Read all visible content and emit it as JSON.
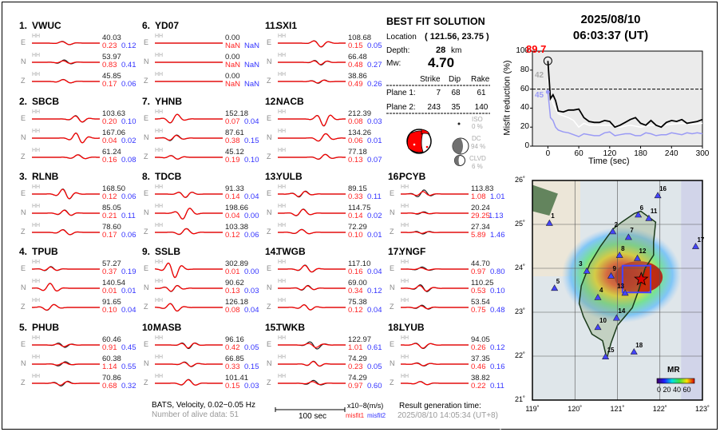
{
  "event": {
    "date": "2025/08/10",
    "time": "06:03:37  (UT)"
  },
  "best_fit": {
    "title": "BEST FIT SOLUTION",
    "location_label": "Location",
    "location": "( 121.56,  23.75 )",
    "depth_label": "Depth:",
    "depth": "28",
    "depth_unit": "km",
    "mw_label": "Mw:",
    "mw": "4.70",
    "headers": [
      "Strike",
      "Dip",
      "Rake"
    ],
    "planes": [
      {
        "label": "Plane 1:",
        "strike": "7",
        "dip": "68",
        "rake": "61"
      },
      {
        "label": "Plane 2:",
        "strike": "243",
        "dip": "35",
        "rake": "140"
      }
    ],
    "iso_label": "ISO",
    "iso": "0  %",
    "dc_label": "DC",
    "dc": "94 %",
    "clvd_label": "CLVD",
    "clvd": "6  %",
    "colors": {
      "compression": "#ff0000",
      "dc": "#707070"
    }
  },
  "stations": [
    {
      "num": "1.",
      "name": "VWUC",
      "comps": [
        {
          "c": "E",
          "ch": "HH",
          "v": "40.03",
          "m1": "0.23",
          "m2": "0.12"
        },
        {
          "c": "N",
          "ch": "HH",
          "v": "53.97",
          "m1": "0.83",
          "m2": "0.41"
        },
        {
          "c": "Z",
          "ch": "HH",
          "v": "45.85",
          "m1": "0.17",
          "m2": "0.06"
        }
      ]
    },
    {
      "num": "2.",
      "name": "SBCB",
      "comps": [
        {
          "c": "E",
          "ch": "HH",
          "v": "103.63",
          "m1": "0.20",
          "m2": "0.10"
        },
        {
          "c": "N",
          "ch": "HH",
          "v": "167.06",
          "m1": "0.04",
          "m2": "0.02"
        },
        {
          "c": "Z",
          "ch": "HH",
          "v": "61.24",
          "m1": "0.16",
          "m2": "0.08"
        }
      ]
    },
    {
      "num": "3.",
      "name": "RLNB",
      "comps": [
        {
          "c": "E",
          "ch": "HH",
          "v": "168.50",
          "m1": "0.12",
          "m2": "0.06"
        },
        {
          "c": "N",
          "ch": "HH",
          "v": "85.05",
          "m1": "0.21",
          "m2": "0.11"
        },
        {
          "c": "Z",
          "ch": "HH",
          "v": "78.60",
          "m1": "0.17",
          "m2": "0.06"
        }
      ]
    },
    {
      "num": "4.",
      "name": "TPUB",
      "comps": [
        {
          "c": "E",
          "ch": "HH",
          "v": "57.27",
          "m1": "0.37",
          "m2": "0.19"
        },
        {
          "c": "N",
          "ch": "HH",
          "v": "140.54",
          "m1": "0.01",
          "m2": "0.01"
        },
        {
          "c": "Z",
          "ch": "HH",
          "v": "91.65",
          "m1": "0.10",
          "m2": "0.04"
        }
      ]
    },
    {
      "num": "5.",
      "name": "PHUB",
      "comps": [
        {
          "c": "E",
          "ch": "HH",
          "v": "60.46",
          "m1": "0.91",
          "m2": "0.45"
        },
        {
          "c": "N",
          "ch": "HH",
          "v": "60.38",
          "m1": "1.14",
          "m2": "0.55"
        },
        {
          "c": "Z",
          "ch": "HH",
          "v": "70.86",
          "m1": "0.68",
          "m2": "0.32"
        }
      ]
    },
    {
      "num": "6.",
      "name": "YD07",
      "comps": [
        {
          "c": "E",
          "ch": "HH",
          "v": "0.00",
          "m1": "NaN",
          "m2": "NaN"
        },
        {
          "c": "N",
          "ch": "HH",
          "v": "0.00",
          "m1": "NaN",
          "m2": "NaN"
        },
        {
          "c": "Z",
          "ch": "HH",
          "v": "0.00",
          "m1": "NaN",
          "m2": "NaN"
        }
      ]
    },
    {
      "num": "7.",
      "name": "YHNB",
      "comps": [
        {
          "c": "E",
          "ch": "HH",
          "v": "152.18",
          "m1": "0.07",
          "m2": "0.04"
        },
        {
          "c": "N",
          "ch": "HH",
          "v": "87.61",
          "m1": "0.38",
          "m2": "0.15"
        },
        {
          "c": "Z",
          "ch": "HH",
          "v": "45.12",
          "m1": "0.19",
          "m2": "0.10"
        }
      ]
    },
    {
      "num": "8.",
      "name": "TDCB",
      "comps": [
        {
          "c": "E",
          "ch": "HH",
          "v": "91.33",
          "m1": "0.14",
          "m2": "0.04"
        },
        {
          "c": "N",
          "ch": "HH",
          "v": "198.66",
          "m1": "0.04",
          "m2": "0.00"
        },
        {
          "c": "Z",
          "ch": "HH",
          "v": "103.38",
          "m1": "0.12",
          "m2": "0.06"
        }
      ]
    },
    {
      "num": "9.",
      "name": "SSLB",
      "comps": [
        {
          "c": "E",
          "ch": "HH",
          "v": "302.89",
          "m1": "0.01",
          "m2": "0.00"
        },
        {
          "c": "N",
          "ch": "HH",
          "v": "90.62",
          "m1": "0.13",
          "m2": "0.03"
        },
        {
          "c": "Z",
          "ch": "HH",
          "v": "126.18",
          "m1": "0.08",
          "m2": "0.04"
        }
      ]
    },
    {
      "num": "10.",
      "name": "MASB",
      "comps": [
        {
          "c": "E",
          "ch": "HH",
          "v": "96.16",
          "m1": "0.42",
          "m2": "0.05"
        },
        {
          "c": "N",
          "ch": "HH",
          "v": "66.85",
          "m1": "0.33",
          "m2": "0.15"
        },
        {
          "c": "Z",
          "ch": "HH",
          "v": "101.41",
          "m1": "0.15",
          "m2": "0.03"
        }
      ]
    },
    {
      "num": "11.",
      "name": "SXI1",
      "comps": [
        {
          "c": "E",
          "ch": "HH",
          "v": "108.68",
          "m1": "0.15",
          "m2": "0.05"
        },
        {
          "c": "N",
          "ch": "HH",
          "v": "66.48",
          "m1": "0.48",
          "m2": "0.27"
        },
        {
          "c": "Z",
          "ch": "HH",
          "v": "38.86",
          "m1": "0.49",
          "m2": "0.26"
        }
      ]
    },
    {
      "num": "12.",
      "name": "NACB",
      "comps": [
        {
          "c": "E",
          "ch": "HH",
          "v": "212.39",
          "m1": "0.08",
          "m2": "0.03"
        },
        {
          "c": "N",
          "ch": "HH",
          "v": "134.26",
          "m1": "0.06",
          "m2": "0.01"
        },
        {
          "c": "Z",
          "ch": "HH",
          "v": "77.18",
          "m1": "0.13",
          "m2": "0.07"
        }
      ]
    },
    {
      "num": "13.",
      "name": "YULB",
      "comps": [
        {
          "c": "E",
          "ch": "HH",
          "v": "89.15",
          "m1": "0.33",
          "m2": "0.11"
        },
        {
          "c": "N",
          "ch": "HH",
          "v": "114.75",
          "m1": "0.14",
          "m2": "0.02"
        },
        {
          "c": "Z",
          "ch": "HH",
          "v": "72.29",
          "m1": "0.10",
          "m2": "0.01"
        }
      ]
    },
    {
      "num": "14.",
      "name": "TWGB",
      "comps": [
        {
          "c": "E",
          "ch": "HH",
          "v": "117.10",
          "m1": "0.16",
          "m2": "0.04"
        },
        {
          "c": "N",
          "ch": "HH",
          "v": "69.00",
          "m1": "0.34",
          "m2": "0.12"
        },
        {
          "c": "Z",
          "ch": "HH",
          "v": "75.38",
          "m1": "0.12",
          "m2": "0.04"
        }
      ]
    },
    {
      "num": "15.",
      "name": "TWKB",
      "comps": [
        {
          "c": "E",
          "ch": "HH",
          "v": "122.97",
          "m1": "1.01",
          "m2": "0.61"
        },
        {
          "c": "N",
          "ch": "HH",
          "v": "74.29",
          "m1": "0.23",
          "m2": "0.05"
        },
        {
          "c": "Z",
          "ch": "HH",
          "v": "74.29",
          "m1": "0.97",
          "m2": "0.60"
        }
      ]
    },
    {
      "num": "16.",
      "name": "PCYB",
      "comps": [
        {
          "c": "E",
          "ch": "HH",
          "v": "113.83",
          "m1": "1.08",
          "m2": "1.01"
        },
        {
          "c": "N",
          "ch": "HH",
          "v": "20.24",
          "m1": "29.25",
          "m2": "1.13"
        },
        {
          "c": "Z",
          "ch": "HH",
          "v": "27.34",
          "m1": "5.89",
          "m2": "1.46"
        }
      ]
    },
    {
      "num": "17.",
      "name": "YNGF",
      "comps": [
        {
          "c": "E",
          "ch": "HH",
          "v": "44.70",
          "m1": "0.97",
          "m2": "0.80"
        },
        {
          "c": "N",
          "ch": "HH",
          "v": "110.25",
          "m1": "0.53",
          "m2": "0.10"
        },
        {
          "c": "Z",
          "ch": "HH",
          "v": "53.54",
          "m1": "0.75",
          "m2": "0.48"
        }
      ]
    },
    {
      "num": "18.",
      "name": "LYUB",
      "comps": [
        {
          "c": "E",
          "ch": "HH",
          "v": "94.05",
          "m1": "0.26",
          "m2": "0.12"
        },
        {
          "c": "N",
          "ch": "HH",
          "v": "37.35",
          "m1": "0.46",
          "m2": "0.16"
        },
        {
          "c": "Z",
          "ch": "HH",
          "v": "38.82",
          "m1": "0.22",
          "m2": "0.11"
        }
      ]
    }
  ],
  "footer": {
    "network": "BATS, Velocity, 0.02−0.05 Hz",
    "alive": "Number of alive data: 51",
    "scale_label": "100 sec",
    "unit": "x10−8(m/s)",
    "misfit1": "misfit1",
    "misfit2": "misfit2",
    "gen_label": "Result generation time:",
    "gen_time": "2025/08/10 14:05:34 (UT+8)"
  },
  "chart_data": {
    "type": "line",
    "xlabel": "Time (sec)",
    "ylabel": "Misfit reduction (%)",
    "xlim": [
      -30,
      300
    ],
    "ylim": [
      0,
      100
    ],
    "xticks": [
      0,
      60,
      120,
      180,
      240,
      300
    ],
    "yticks": [
      0,
      20,
      40,
      60,
      80,
      100
    ],
    "threshold": 60,
    "peak_label": "89.7",
    "label_white": "42",
    "label_blue": "45",
    "grid": false,
    "series": [
      {
        "color": "#000000",
        "x": [
          0,
          5,
          10,
          15,
          20,
          30,
          40,
          50,
          60,
          70,
          80,
          90,
          100,
          110,
          120,
          130,
          140,
          150,
          160,
          170,
          180,
          190,
          200,
          210,
          220,
          230,
          240,
          250,
          260,
          270,
          280,
          290,
          300
        ],
        "y": [
          89.7,
          50,
          54,
          48,
          37,
          36,
          38,
          38,
          39,
          30,
          26,
          25,
          25,
          27,
          26,
          20,
          22,
          25,
          28,
          30,
          24,
          22,
          27,
          22,
          20,
          25,
          27,
          26,
          28,
          24,
          25,
          26,
          28
        ]
      },
      {
        "color": "#ffffff",
        "x": [
          0,
          5,
          10,
          20,
          30,
          40,
          50,
          60,
          70,
          80,
          100,
          120,
          140,
          160,
          180,
          200,
          220,
          240,
          260,
          280,
          300
        ],
        "y": [
          70,
          55,
          45,
          34,
          32,
          30,
          27,
          20,
          24,
          22,
          22,
          22,
          20,
          22,
          20,
          22,
          22,
          23,
          24,
          23,
          24
        ]
      },
      {
        "color": "#9a9af5",
        "x": [
          0,
          5,
          10,
          15,
          20,
          30,
          40,
          50,
          60,
          70,
          80,
          90,
          100,
          110,
          120,
          130,
          140,
          150,
          160,
          170,
          180,
          190,
          200,
          210,
          220,
          230,
          240,
          250,
          260,
          270,
          280,
          290,
          300
        ],
        "y": [
          57,
          30,
          27,
          20,
          17,
          15,
          14,
          12,
          10,
          13,
          12,
          11,
          11,
          14,
          15,
          11,
          12,
          13,
          13,
          11,
          11,
          14,
          13,
          11,
          12,
          12,
          14,
          13,
          12,
          14,
          13,
          14,
          13
        ]
      }
    ]
  },
  "map": {
    "lon_ticks": [
      "119˚",
      "120˚",
      "121˚",
      "122˚",
      "123˚"
    ],
    "lat_ticks": [
      "21˚",
      "22˚",
      "23˚",
      "24˚",
      "25˚",
      "26˚"
    ],
    "epicenter": {
      "lon": 121.56,
      "lat": 23.75
    },
    "colorbar_label": "MR",
    "colorbar_ticks": "0 20 40 60",
    "station_color": "#4444ff",
    "stations": [
      {
        "n": "1",
        "lon": 119.4,
        "lat": 25.01
      },
      {
        "n": "2",
        "lon": 120.89,
        "lat": 24.82
      },
      {
        "n": "3",
        "lon": 120.28,
        "lat": 23.92
      },
      {
        "n": "4",
        "lon": 120.54,
        "lat": 23.32
      },
      {
        "n": "5",
        "lon": 119.52,
        "lat": 23.53
      },
      {
        "n": "6",
        "lon": 121.49,
        "lat": 25.2
      },
      {
        "n": "7",
        "lon": 121.26,
        "lat": 24.69
      },
      {
        "n": "8",
        "lon": 121.05,
        "lat": 24.28
      },
      {
        "n": "9",
        "lon": 120.85,
        "lat": 23.81
      },
      {
        "n": "10",
        "lon": 120.54,
        "lat": 22.64
      },
      {
        "n": "11",
        "lon": 121.74,
        "lat": 25.12
      },
      {
        "n": "12",
        "lon": 121.47,
        "lat": 24.21
      },
      {
        "n": "13",
        "lon": 121.18,
        "lat": 23.42
      },
      {
        "n": "14",
        "lon": 120.98,
        "lat": 22.85
      },
      {
        "n": "15",
        "lon": 120.72,
        "lat": 21.97
      },
      {
        "n": "16",
        "lon": 121.95,
        "lat": 25.64
      },
      {
        "n": "17",
        "lon": 122.84,
        "lat": 24.48
      },
      {
        "n": "18",
        "lon": 121.39,
        "lat": 22.08
      }
    ]
  }
}
